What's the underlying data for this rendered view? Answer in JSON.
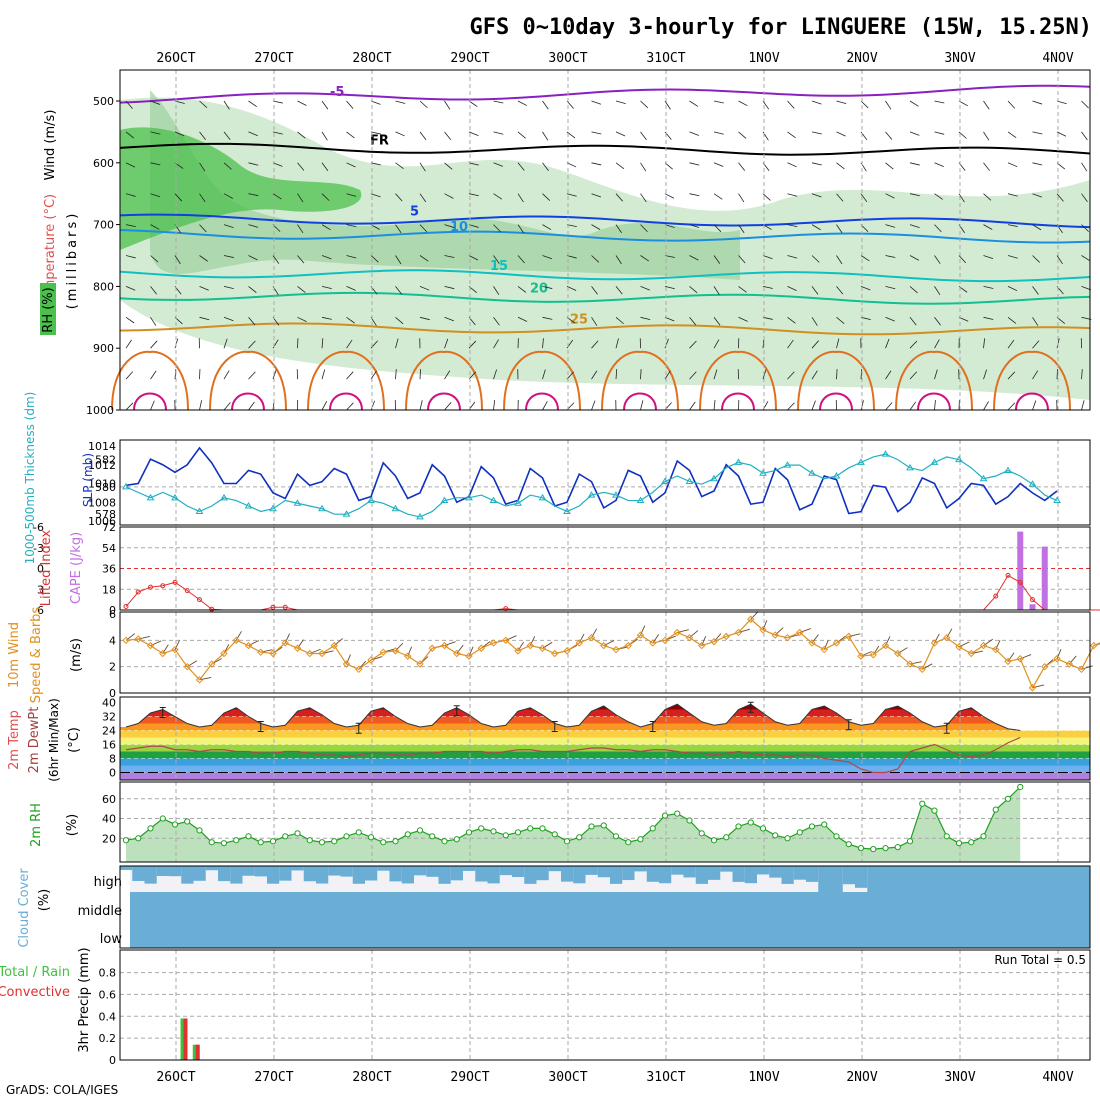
{
  "title": "GFS 0~10day 3-hourly for LINGUERE (15W, 15.25N)",
  "footer": "GrADS: COLA/IGES",
  "dates": [
    "26OCT",
    "27OCT",
    "28OCT",
    "29OCT",
    "30OCT",
    "31OCT",
    "1NOV",
    "2NOV",
    "3NOV",
    "4NOV"
  ],
  "colors": {
    "rh_green_light": "#c8e6c8",
    "rh_green_mid": "#9ed09e",
    "rh_green": "#4cc04c",
    "thick_color": "#20b0c0",
    "slp_color": "#1030c0",
    "li_color": "#e03030",
    "cape_color": "#c070e0",
    "wind_color": "#e09020",
    "rh2m_color": "#20a020",
    "cloud_color": "#6aaed6",
    "rain_color": "#40c040",
    "conv_color": "#e03030"
  },
  "panels": {
    "upper": {
      "ylabel_wind": "Wind (m/s)",
      "ylabel_temp": "Temperature (°C)",
      "ylabel_rh": "RH (%)",
      "ylabel_mb": "(millibars)",
      "y_ticks": [
        "500",
        "600",
        "700",
        "800",
        "900",
        "1000"
      ],
      "fr_label": "FR"
    },
    "slp": {
      "ylabel_thick": "1000-500mb Thickness (dm)",
      "ylabel_slp": "SLP (mb)",
      "left_ticks": [
        "582",
        "580",
        "578"
      ],
      "right_ticks": [
        "1014",
        "1012",
        "1010",
        "1008",
        "1006"
      ]
    },
    "cape": {
      "ylabel_li": "Lifted Index",
      "ylabel_cape": "CAPE (J/kg)",
      "left_ticks": [
        "-6",
        "-3",
        "0",
        "3",
        "6"
      ],
      "right_ticks": [
        "72",
        "54",
        "36",
        "18",
        "0"
      ]
    },
    "wind10": {
      "ylabel_a": "10m Wind",
      "ylabel_b": "Speed & Barbs",
      "ylabel_c": "(m/s)",
      "ticks": [
        "6",
        "4",
        "2",
        "0"
      ]
    },
    "temp2m": {
      "ylabel_a": "2m Temp",
      "ylabel_b": "2m DewPt",
      "ylabel_c": "(6hr Min/Max)",
      "ylabel_d": "(°C)",
      "ticks": [
        "40",
        "32",
        "24",
        "16",
        "8",
        "0"
      ]
    },
    "rh2m": {
      "ylabel_a": "2m RH",
      "ylabel_b": "(%)",
      "ticks": [
        "60",
        "40",
        "20"
      ]
    },
    "cloud": {
      "ylabel_a": "Cloud Cover",
      "ylabel_b": "(%)",
      "levels": [
        "high",
        "middle",
        "low"
      ]
    },
    "precip": {
      "ylabel_a": "Total / Rain",
      "ylabel_b": "Convective",
      "ylabel_c": "3hr Precip (mm)",
      "ticks": [
        "0.8",
        "0.6",
        "0.4",
        "0.2",
        "0"
      ],
      "run_total": "Run Total = 0.5"
    }
  },
  "chart_data": {
    "type": "line",
    "x_unit": "3-hourly steps from 25OCT 12Z",
    "x_start": "25OCT 12Z",
    "step_hours": 3,
    "slp_mb": [
      1009.8,
      1010.0,
      1012.6,
      1012.0,
      1011.2,
      1012.0,
      1013.8,
      1012.2,
      1010.0,
      1010.0,
      1011.4,
      1011.0,
      1009.0,
      1008.4,
      1011.0,
      1009.8,
      1010.2,
      1011.6,
      1011.0,
      1008.2,
      1008.6,
      1012.2,
      1010.8,
      1008.4,
      1009.0,
      1012.0,
      1010.8,
      1008.0,
      1008.6,
      1011.8,
      1010.6,
      1007.8,
      1008.2,
      1011.6,
      1010.6,
      1007.6,
      1008.0,
      1011.0,
      1010.2,
      1007.4,
      1008.2,
      1011.4,
      1010.8,
      1008.0,
      1009.0,
      1012.4,
      1011.4,
      1008.6,
      1009.2,
      1012.0,
      1010.8,
      1007.8,
      1008.0,
      1011.6,
      1010.4,
      1007.2,
      1007.8,
      1010.8,
      1010.4,
      1006.8,
      1007.0,
      1009.8,
      1009.6,
      1007.0,
      1008.0,
      1010.6,
      1010.0,
      1007.4,
      1008.4,
      1010.0,
      1009.8,
      1007.8,
      1008.6,
      1010.0,
      1009.0,
      1008.2,
      1009.2
    ],
    "thickness_dm": [
      580.0,
      579.6,
      579.2,
      579.6,
      579.2,
      578.6,
      578.2,
      578.6,
      579.2,
      579.0,
      578.6,
      578.2,
      578.4,
      579.0,
      578.8,
      578.6,
      578.4,
      578.0,
      578.0,
      578.4,
      579.0,
      578.8,
      578.4,
      578.0,
      577.8,
      578.2,
      579.0,
      579.2,
      579.2,
      579.4,
      579.0,
      578.6,
      578.8,
      579.4,
      579.2,
      578.6,
      578.2,
      578.6,
      579.4,
      579.6,
      579.4,
      579.0,
      579.0,
      579.6,
      580.4,
      580.8,
      580.4,
      580.2,
      580.6,
      581.4,
      581.8,
      581.6,
      581.0,
      581.2,
      581.6,
      581.6,
      581.0,
      580.6,
      580.8,
      581.4,
      581.8,
      582.2,
      582.4,
      582.0,
      581.4,
      581.2,
      581.8,
      582.2,
      582.0,
      581.4,
      580.6,
      580.8,
      581.2,
      580.8,
      580.2,
      579.4,
      579.0
    ],
    "lifted_index": [
      5.5,
      3.4,
      2.7,
      2.5,
      2.0,
      3.2,
      4.5,
      5.9,
      6.0,
      6.0,
      6.0,
      6.0,
      5.6,
      5.6,
      6.0,
      6.0,
      6.0,
      6.0,
      6.0,
      6.0,
      6.0,
      6.0,
      6.0,
      6.0,
      6.0,
      6.0,
      6.0,
      6.0,
      6.0,
      6.0,
      6.0,
      5.8,
      6.0,
      6.0,
      6.0,
      6.0,
      6.0,
      6.0,
      6.0,
      6.0,
      6.0,
      6.0,
      6.0,
      6.0,
      6.0,
      6.0,
      6.0,
      6.0,
      6.0,
      6.0,
      6.0,
      6.0,
      6.0,
      6.0,
      6.0,
      6.0,
      6.0,
      6.0,
      6.0,
      6.0,
      6.0,
      6.0,
      6.0,
      6.0,
      6.0,
      6.0,
      6.0,
      6.0,
      6.0,
      6.0,
      6.0,
      4.0,
      1.0,
      2.0,
      4.5,
      6.0,
      6.0,
      6.0,
      6.0,
      6.0,
      6.0,
      6.0,
      6.0,
      6.0,
      6.0,
      6.0,
      1.0,
      1.2,
      -0.2
    ],
    "cape_bars": [
      {
        "step": 73,
        "value": 68
      },
      {
        "step": 74,
        "value": 5
      },
      {
        "step": 75,
        "value": 55
      }
    ],
    "wind10_speed": [
      4.0,
      4.1,
      3.6,
      3.0,
      3.3,
      2.0,
      1.0,
      2.2,
      3.0,
      4.0,
      3.6,
      3.1,
      3.0,
      3.8,
      3.4,
      3.0,
      3.0,
      3.6,
      2.2,
      1.8,
      2.5,
      3.1,
      3.2,
      2.8,
      2.2,
      3.4,
      3.6,
      3.0,
      2.8,
      3.4,
      3.8,
      4.0,
      3.2,
      3.6,
      3.4,
      3.0,
      3.2,
      3.8,
      4.2,
      3.6,
      3.3,
      3.6,
      4.4,
      3.8,
      4.0,
      4.6,
      4.2,
      3.6,
      3.9,
      4.3,
      4.6,
      5.6,
      4.8,
      4.4,
      4.2,
      4.6,
      3.8,
      3.3,
      3.8,
      4.3,
      2.8,
      2.9,
      3.6,
      3.0,
      2.2,
      1.8,
      3.8,
      4.2,
      3.5,
      3.0,
      3.6,
      3.3,
      2.4,
      2.6,
      0.4,
      2.0,
      2.6,
      2.2,
      1.8,
      3.6,
      4.0,
      4.1,
      3.8,
      4.0
    ],
    "temp2m_c": [
      26,
      28,
      34,
      36,
      32,
      28,
      26,
      27,
      34,
      37,
      32,
      28,
      26,
      27,
      35,
      37,
      33,
      28,
      26,
      27,
      35,
      37,
      32,
      28,
      26,
      27,
      34,
      37,
      33,
      28,
      26,
      27,
      35,
      37,
      33,
      28,
      26,
      27,
      35,
      38,
      33,
      29,
      26,
      28,
      36,
      39,
      34,
      29,
      27,
      28,
      36,
      39,
      34,
      29,
      27,
      28,
      36,
      38,
      34,
      29,
      27,
      28,
      36,
      38,
      34,
      29,
      26,
      27,
      35,
      37,
      32,
      28,
      25,
      24
    ],
    "dewpt2m_c": [
      13,
      14,
      15,
      15,
      13,
      13,
      12,
      13,
      13,
      12,
      12,
      11,
      11,
      12,
      12,
      11,
      10,
      10,
      9,
      10,
      11,
      11,
      10,
      10,
      11,
      11,
      12,
      12,
      12,
      12,
      11,
      12,
      13,
      13,
      12,
      12,
      12,
      13,
      14,
      14,
      13,
      13,
      12,
      13,
      13,
      12,
      11,
      11,
      10,
      11,
      12,
      11,
      10,
      10,
      9,
      10,
      10,
      8,
      7,
      6,
      2,
      0,
      0,
      2,
      12,
      14,
      16,
      13,
      10,
      9,
      10,
      13,
      17,
      20
    ],
    "rh2m_pct": [
      18,
      20,
      30,
      40,
      34,
      37,
      28,
      16,
      15,
      18,
      22,
      16,
      17,
      22,
      25,
      18,
      16,
      17,
      22,
      26,
      21,
      16,
      17,
      24,
      28,
      22,
      17,
      19,
      26,
      30,
      27,
      23,
      26,
      30,
      30,
      24,
      17,
      21,
      32,
      33,
      22,
      16,
      19,
      30,
      43,
      45,
      38,
      25,
      18,
      21,
      32,
      36,
      30,
      23,
      20,
      26,
      32,
      34,
      22,
      14,
      10,
      9,
      10,
      11,
      17,
      55,
      48,
      22,
      15,
      16,
      22,
      49,
      60,
      72
    ],
    "precip_mm": [
      {
        "step": 2,
        "total": 0.38,
        "conv": 0.38
      },
      {
        "step": 3,
        "total": 0.14,
        "conv": 0.14
      }
    ],
    "run_total_mm": 0.5,
    "cloud_fill_note": "cloud cover shown as shaded bars per level"
  }
}
